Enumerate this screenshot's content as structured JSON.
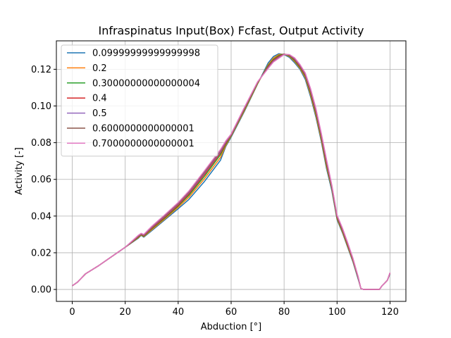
{
  "chart_data": {
    "type": "line",
    "title": "Infraspinatus Input(Box) Fcfast, Output Activity",
    "xlabel": "Abduction [°]",
    "ylabel": "Activity [-]",
    "xlim": [
      -6,
      126
    ],
    "ylim": [
      -0.0065,
      0.1355
    ],
    "grid": true,
    "legend_position": "top-left",
    "x_ticks": [
      0,
      20,
      40,
      60,
      80,
      100,
      120
    ],
    "x_tick_labels": [
      "0",
      "20",
      "40",
      "60",
      "80",
      "100",
      "120"
    ],
    "y_ticks": [
      0.0,
      0.02,
      0.04,
      0.06,
      0.08,
      0.1,
      0.12
    ],
    "y_tick_labels": [
      "0.00",
      "0.02",
      "0.04",
      "0.06",
      "0.08",
      "0.10",
      "0.12"
    ],
    "series": [
      {
        "name": "0.09999999999999998",
        "color": "#1f77b4",
        "x": [
          0,
          2,
          4,
          5,
          10,
          15,
          20,
          25,
          26,
          27,
          30,
          35,
          40,
          44,
          50,
          56,
          58,
          60,
          65,
          70,
          74,
          76,
          78,
          80,
          82,
          84,
          86,
          88,
          90,
          92,
          94,
          96,
          98,
          100,
          102,
          104,
          106,
          108,
          109,
          110,
          112,
          114,
          116,
          117,
          119,
          120
        ],
        "y": [
          0.002,
          0.004,
          0.007,
          0.0085,
          0.013,
          0.018,
          0.023,
          0.028,
          0.0295,
          0.0285,
          0.032,
          0.038,
          0.044,
          0.049,
          0.059,
          0.0705,
          0.078,
          0.083,
          0.097,
          0.112,
          0.1235,
          0.127,
          0.1285,
          0.128,
          0.1265,
          0.1235,
          0.12,
          0.1145,
          0.105,
          0.094,
          0.081,
          0.066,
          0.054,
          0.038,
          0.031,
          0.023,
          0.015,
          0.0055,
          0.0005,
          0.0,
          0.0,
          0.0,
          0.0,
          0.002,
          0.005,
          0.0085
        ]
      },
      {
        "name": "0.2",
        "color": "#ff7f0e",
        "x": [
          0,
          2,
          4,
          5,
          10,
          15,
          20,
          25,
          26,
          27,
          30,
          35,
          40,
          44,
          50,
          56,
          58,
          60,
          65,
          70,
          74,
          76,
          78,
          80,
          82,
          84,
          86,
          88,
          90,
          92,
          94,
          96,
          98,
          100,
          102,
          104,
          106,
          108,
          109,
          110,
          112,
          114,
          116,
          117,
          119,
          120
        ],
        "y": [
          0.002,
          0.004,
          0.007,
          0.0085,
          0.013,
          0.018,
          0.023,
          0.0283,
          0.0297,
          0.0288,
          0.0325,
          0.0385,
          0.0448,
          0.0502,
          0.0605,
          0.072,
          0.0785,
          0.0835,
          0.0975,
          0.1122,
          0.1225,
          0.1262,
          0.128,
          0.1282,
          0.127,
          0.1242,
          0.1205,
          0.1155,
          0.106,
          0.095,
          0.082,
          0.067,
          0.055,
          0.0385,
          0.0315,
          0.0235,
          0.0155,
          0.006,
          0.0005,
          0.0,
          0.0,
          0.0,
          0.0,
          0.002,
          0.005,
          0.0088
        ]
      },
      {
        "name": "0.30000000000000004",
        "color": "#2ca02c",
        "x": [
          0,
          2,
          4,
          5,
          10,
          15,
          20,
          25,
          26,
          27,
          30,
          35,
          40,
          44,
          50,
          56,
          58,
          60,
          65,
          70,
          74,
          76,
          78,
          80,
          82,
          84,
          86,
          88,
          90,
          92,
          94,
          96,
          98,
          100,
          102,
          104,
          106,
          108,
          109,
          110,
          112,
          114,
          116,
          117,
          119,
          120
        ],
        "y": [
          0.002,
          0.004,
          0.007,
          0.0085,
          0.013,
          0.018,
          0.023,
          0.0286,
          0.0299,
          0.029,
          0.033,
          0.039,
          0.0455,
          0.0512,
          0.0618,
          0.0735,
          0.0792,
          0.0838,
          0.098,
          0.1125,
          0.122,
          0.1255,
          0.1275,
          0.1283,
          0.1273,
          0.1247,
          0.121,
          0.1162,
          0.107,
          0.096,
          0.083,
          0.068,
          0.0555,
          0.039,
          0.032,
          0.024,
          0.016,
          0.0062,
          0.0005,
          0.0,
          0.0,
          0.0,
          0.0,
          0.002,
          0.005,
          0.009
        ]
      },
      {
        "name": "0.4",
        "color": "#d62728",
        "x": [
          0,
          2,
          4,
          5,
          10,
          15,
          20,
          25,
          26,
          27,
          30,
          35,
          40,
          44,
          50,
          56,
          58,
          60,
          65,
          70,
          74,
          76,
          78,
          80,
          82,
          84,
          86,
          88,
          90,
          92,
          94,
          96,
          98,
          100,
          102,
          104,
          106,
          108,
          109,
          110,
          112,
          114,
          116,
          117,
          119,
          120
        ],
        "y": [
          0.002,
          0.004,
          0.007,
          0.0085,
          0.013,
          0.018,
          0.023,
          0.0289,
          0.0301,
          0.0293,
          0.0334,
          0.0395,
          0.046,
          0.052,
          0.0628,
          0.0745,
          0.0798,
          0.0841,
          0.0985,
          0.1128,
          0.1215,
          0.125,
          0.127,
          0.1283,
          0.1276,
          0.1252,
          0.1215,
          0.1168,
          0.1078,
          0.097,
          0.0838,
          0.069,
          0.056,
          0.0395,
          0.0325,
          0.0245,
          0.0162,
          0.0064,
          0.0005,
          0.0,
          0.0,
          0.0,
          0.0,
          0.002,
          0.005,
          0.009
        ]
      },
      {
        "name": "0.5",
        "color": "#9467bd",
        "x": [
          0,
          2,
          4,
          5,
          10,
          15,
          20,
          25,
          26,
          27,
          30,
          35,
          40,
          44,
          50,
          56,
          58,
          60,
          65,
          70,
          74,
          76,
          78,
          80,
          82,
          84,
          86,
          88,
          90,
          92,
          94,
          96,
          98,
          100,
          102,
          104,
          106,
          108,
          109,
          110,
          112,
          114,
          116,
          117,
          119,
          120
        ],
        "y": [
          0.002,
          0.004,
          0.007,
          0.0085,
          0.013,
          0.018,
          0.023,
          0.0292,
          0.0303,
          0.0296,
          0.0338,
          0.04,
          0.0466,
          0.0527,
          0.0636,
          0.0752,
          0.0803,
          0.0843,
          0.0988,
          0.113,
          0.121,
          0.1245,
          0.1265,
          0.1282,
          0.1278,
          0.1256,
          0.122,
          0.1173,
          0.1085,
          0.0978,
          0.0845,
          0.07,
          0.0565,
          0.04,
          0.033,
          0.025,
          0.0165,
          0.0066,
          0.0005,
          0.0,
          0.0,
          0.0,
          0.0,
          0.002,
          0.005,
          0.009
        ]
      },
      {
        "name": "0.6000000000000001",
        "color": "#8c564b",
        "x": [
          0,
          2,
          4,
          5,
          10,
          15,
          20,
          25,
          26,
          27,
          30,
          35,
          40,
          44,
          50,
          56,
          58,
          60,
          65,
          70,
          74,
          76,
          78,
          80,
          82,
          84,
          86,
          88,
          90,
          92,
          94,
          96,
          98,
          100,
          102,
          104,
          106,
          108,
          109,
          110,
          112,
          114,
          116,
          117,
          119,
          120
        ],
        "y": [
          0.002,
          0.004,
          0.007,
          0.0085,
          0.013,
          0.018,
          0.023,
          0.0294,
          0.0305,
          0.0298,
          0.0341,
          0.0404,
          0.047,
          0.0532,
          0.0642,
          0.0758,
          0.0807,
          0.0845,
          0.099,
          0.1131,
          0.1207,
          0.1242,
          0.1262,
          0.1281,
          0.1279,
          0.1259,
          0.1223,
          0.1177,
          0.109,
          0.0983,
          0.085,
          0.0705,
          0.0568,
          0.0403,
          0.0333,
          0.0253,
          0.0168,
          0.0067,
          0.0005,
          0.0,
          0.0,
          0.0,
          0.0,
          0.002,
          0.005,
          0.009
        ]
      },
      {
        "name": "0.7000000000000001",
        "color": "#e377c2",
        "x": [
          0,
          2,
          4,
          5,
          10,
          15,
          20,
          25,
          26,
          27,
          30,
          35,
          40,
          44,
          50,
          56,
          58,
          60,
          65,
          70,
          74,
          76,
          78,
          80,
          82,
          84,
          86,
          88,
          90,
          92,
          94,
          96,
          98,
          100,
          102,
          104,
          106,
          108,
          109,
          110,
          112,
          114,
          116,
          117,
          119,
          120
        ],
        "y": [
          0.002,
          0.004,
          0.007,
          0.0085,
          0.013,
          0.018,
          0.023,
          0.0296,
          0.0306,
          0.03,
          0.0344,
          0.0408,
          0.0474,
          0.0536,
          0.0648,
          0.0763,
          0.081,
          0.0847,
          0.0992,
          0.1132,
          0.1205,
          0.124,
          0.126,
          0.128,
          0.128,
          0.1262,
          0.1226,
          0.118,
          0.1095,
          0.0988,
          0.0855,
          0.071,
          0.057,
          0.0405,
          0.0336,
          0.0256,
          0.017,
          0.0068,
          0.0005,
          0.0,
          0.0,
          0.0,
          0.0,
          0.002,
          0.005,
          0.0092
        ]
      }
    ]
  }
}
